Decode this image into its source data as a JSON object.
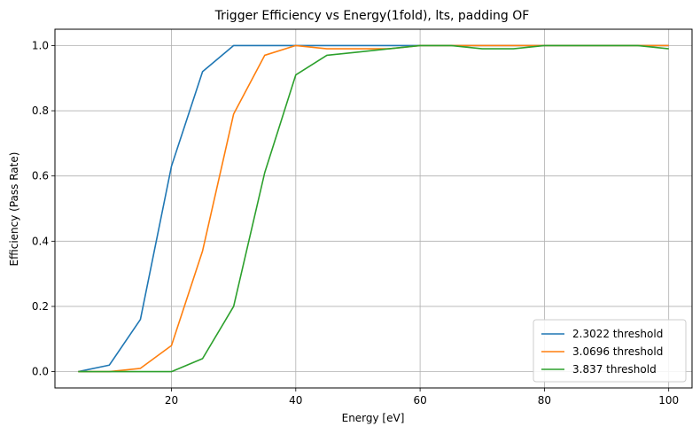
{
  "chart_data": {
    "type": "line",
    "title": "Trigger Efficiency vs Energy(1fold), lts, padding OF",
    "xlabel": "Energy [eV]",
    "ylabel": "Efficiency (Pass Rate)",
    "xlim": [
      1.25,
      103.75
    ],
    "ylim": [
      -0.05,
      1.05
    ],
    "xticks": [
      20,
      40,
      60,
      80,
      100
    ],
    "yticks": [
      0.0,
      0.2,
      0.4,
      0.6,
      0.8,
      1.0
    ],
    "xtick_labels": [
      "20",
      "40",
      "60",
      "80",
      "100"
    ],
    "ytick_labels": [
      "0.0",
      "0.2",
      "0.4",
      "0.6",
      "0.8",
      "1.0"
    ],
    "grid": true,
    "legend_position": "lower-right",
    "x": [
      5,
      10,
      15,
      20,
      25,
      30,
      35,
      40,
      45,
      50,
      55,
      60,
      65,
      70,
      75,
      80,
      85,
      90,
      95,
      100
    ],
    "series": [
      {
        "name": "2.3022 threshold",
        "color": "#1f77b4",
        "values": [
          0.0,
          0.02,
          0.16,
          0.63,
          0.92,
          1.0,
          1.0,
          1.0,
          1.0,
          1.0,
          1.0,
          1.0,
          1.0,
          1.0,
          1.0,
          1.0,
          1.0,
          1.0,
          1.0,
          1.0
        ]
      },
      {
        "name": "3.0696 threshold",
        "color": "#ff7f0e",
        "values": [
          0.0,
          0.0,
          0.01,
          0.08,
          0.37,
          0.79,
          0.97,
          1.0,
          0.99,
          0.99,
          0.99,
          1.0,
          1.0,
          1.0,
          1.0,
          1.0,
          1.0,
          1.0,
          1.0,
          1.0
        ]
      },
      {
        "name": "3.837 threshold",
        "color": "#2ca02c",
        "values": [
          0.0,
          0.0,
          0.0,
          0.0,
          0.04,
          0.2,
          0.61,
          0.91,
          0.97,
          0.98,
          0.99,
          1.0,
          1.0,
          0.99,
          0.99,
          1.0,
          1.0,
          1.0,
          1.0,
          0.99
        ]
      }
    ]
  }
}
